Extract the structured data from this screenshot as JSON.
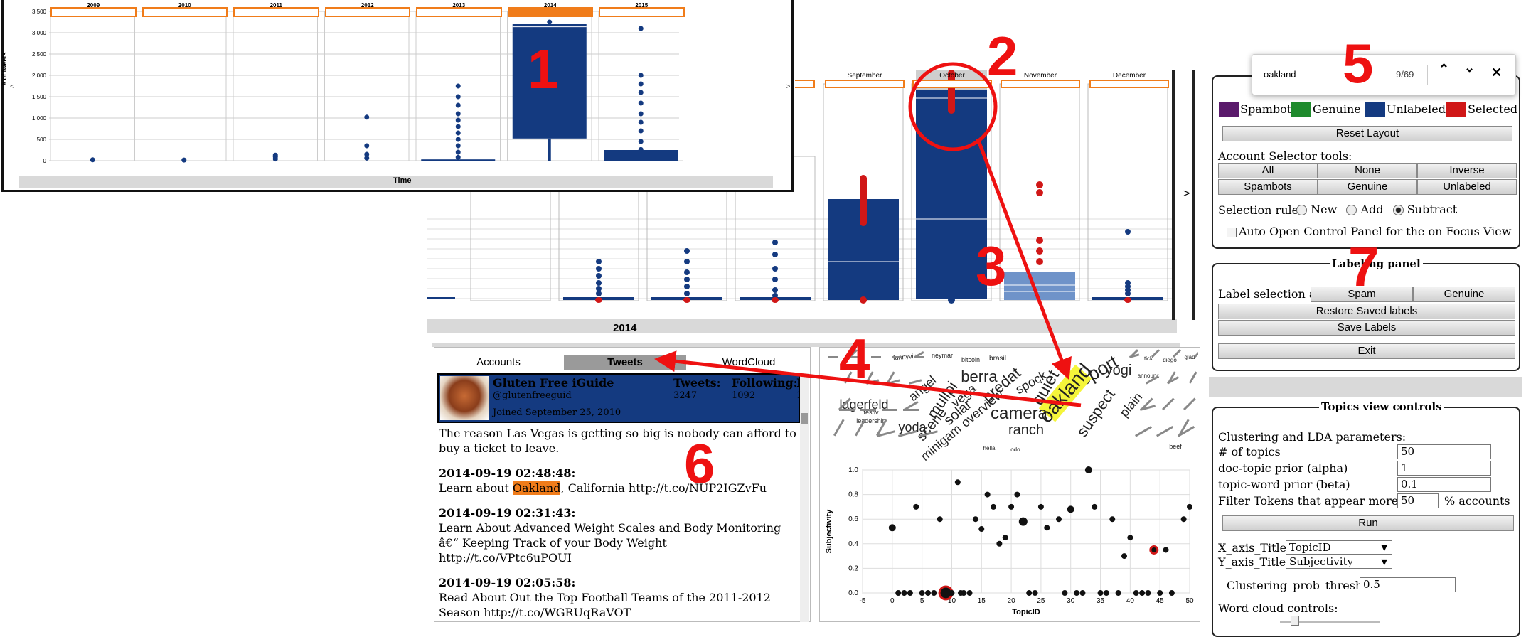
{
  "years_panel": {
    "years": [
      "2009",
      "2010",
      "2011",
      "2012",
      "2013",
      "2014",
      "2015"
    ],
    "y_ticks": [
      "3,500",
      "3,000",
      "2,500",
      "2,000",
      "1,500",
      "1,000",
      "500",
      "0"
    ],
    "y_label": "# of tweets",
    "x_label": "Time",
    "nav_left": "<",
    "nav_right": ">",
    "selected_year": "2014"
  },
  "months_panel": {
    "months": [
      "September",
      "October",
      "November",
      "December"
    ],
    "year_label": "2014",
    "nav_right": ">"
  },
  "callouts": [
    "1",
    "2",
    "3",
    "4",
    "5",
    "6",
    "7"
  ],
  "find_bar": {
    "query": "oakland",
    "count": "9/69",
    "up": "⌃",
    "down": "⌄",
    "close": "✕"
  },
  "legend": {
    "items": [
      {
        "label": "Spambot",
        "color": "#5a1a6b"
      },
      {
        "label": "Genuine",
        "color": "#1e8a2c"
      },
      {
        "label": "Unlabeled",
        "color": "#143a80"
      },
      {
        "label": "Selected",
        "color": "#d01717"
      }
    ]
  },
  "control_panel": {
    "reset_layout": "Reset Layout",
    "selector_title": "Account Selector tools:",
    "selector_buttons": [
      "All",
      "None",
      "Inverse",
      "Spambots",
      "Genuine",
      "Unlabeled"
    ],
    "selection_rule_label": "Selection rule:",
    "rule_options": [
      "New",
      "Add",
      "Subtract"
    ],
    "rule_selected": "Subtract",
    "auto_open_label": "Auto Open Control Panel for the on Focus View"
  },
  "labeling_panel": {
    "title": "Labeling panel",
    "label_as": "Label selection as:",
    "spam": "Spam",
    "genuine": "Genuine",
    "restore": "Restore Saved labels",
    "save": "Save Labels",
    "exit": "Exit"
  },
  "topics_panel": {
    "title": "Topics view controls",
    "section": "Clustering and LDA parameters:",
    "params": [
      {
        "label": "# of topics",
        "value": "50"
      },
      {
        "label": "doc-topic prior (alpha)",
        "value": "1"
      },
      {
        "label": "topic-word prior (beta)",
        "value": "0.1"
      }
    ],
    "filter_label": "Filter Tokens that appear more than",
    "filter_value": "50",
    "filter_unit": "% accounts",
    "run": "Run",
    "x_axis_label": "X_axis_Title",
    "x_axis_value": "TopicID",
    "y_axis_label": "Y_axis_Title",
    "y_axis_value": "Subjectivity",
    "threshold_label": "Clustering_prob_threshold",
    "threshold_value": "0.5",
    "wordcloud_controls": "Word cloud controls:"
  },
  "tabs": [
    "Accounts",
    "Tweets",
    "WordCloud"
  ],
  "active_tab": "Tweets",
  "account": {
    "name": "Gluten Free iGuide",
    "handle": "@glutenfreeguid",
    "joined": "Joined September 25, 2010",
    "tweets_label": "Tweets:",
    "tweets_value": "3247",
    "following_label": "Following:",
    "following_value": "1092",
    "extra_label": "F",
    "extra_value": "1"
  },
  "tweets": [
    {
      "date": "",
      "text": "The reason Las Vegas is getting so big is nobody can afford to buy a ticket to leave."
    },
    {
      "date": "2014-09-19 02:48:48:",
      "pre": "Learn about ",
      "highlight": "Oakland",
      "post": ", California http://t.co/NUP2IGZvFu"
    },
    {
      "date": "2014-09-19 02:31:43:",
      "text": "Learn About Advanced Weight Scales and Body Monitoring â€“ Keeping Track of your Body Weight http://t.co/VPtc6uPOUI"
    },
    {
      "date": "2014-09-19 02:05:58:",
      "text": "Read About Out the Top Football Teams of the 2011-2012 Season http://t.co/WGRUqRaVOT"
    }
  ],
  "wordcloud": {
    "words": [
      "funnyvin",
      "neymar",
      "brasil",
      "bitcoin",
      "report",
      "yogi",
      "oakland",
      "quiet",
      "suspect",
      "camera",
      "ranch",
      "berra",
      "predat",
      "spock",
      "mullpi",
      "scene",
      "solar",
      "overview",
      "minigam",
      "yoda",
      "lagerfeld",
      "angel",
      "vega",
      "plain",
      "tick",
      "diego",
      "glad",
      "announc",
      "beef",
      "leadership",
      "festiv",
      "hella",
      "lodo"
    ],
    "highlight": "oakland"
  },
  "scatter": {
    "chart_data": {
      "type": "scatter",
      "xlabel": "TopicID",
      "ylabel": "Subjectivity",
      "xlim": [
        -5,
        50
      ],
      "ylim": [
        0,
        1.0
      ],
      "x_ticks": [
        "-5",
        "0",
        "5",
        "10",
        "15",
        "20",
        "25",
        "30",
        "35",
        "40",
        "45",
        "50"
      ],
      "y_ticks": [
        "0.0",
        "0.2",
        "0.4",
        "0.6",
        "0.8",
        "1.0"
      ],
      "points": [
        {
          "x": 0,
          "y": 0.53,
          "s": 5
        },
        {
          "x": 1,
          "y": 0,
          "s": 4
        },
        {
          "x": 2,
          "y": 0,
          "s": 4
        },
        {
          "x": 3,
          "y": 0,
          "s": 4
        },
        {
          "x": 4,
          "y": 0.7,
          "s": 4
        },
        {
          "x": 5,
          "y": 0,
          "s": 4
        },
        {
          "x": 6,
          "y": 0,
          "s": 4
        },
        {
          "x": 7,
          "y": 0,
          "s": 4
        },
        {
          "x": 8,
          "y": 0.6,
          "s": 4
        },
        {
          "x": 8.5,
          "y": 0,
          "s": 4
        },
        {
          "x": 9,
          "y": 0,
          "s": 9,
          "sel": true
        },
        {
          "x": 10,
          "y": 0,
          "s": 4
        },
        {
          "x": 11,
          "y": 0.9,
          "s": 4
        },
        {
          "x": 11.5,
          "y": 0,
          "s": 4
        },
        {
          "x": 12,
          "y": 0,
          "s": 4
        },
        {
          "x": 13,
          "y": 0,
          "s": 4
        },
        {
          "x": 14,
          "y": 0.6,
          "s": 4
        },
        {
          "x": 15,
          "y": 0.52,
          "s": 4
        },
        {
          "x": 16,
          "y": 0.8,
          "s": 4
        },
        {
          "x": 17,
          "y": 0.7,
          "s": 4
        },
        {
          "x": 18,
          "y": 0.4,
          "s": 4
        },
        {
          "x": 19,
          "y": 0.45,
          "s": 4
        },
        {
          "x": 20,
          "y": 0.7,
          "s": 4
        },
        {
          "x": 21,
          "y": 0.8,
          "s": 4
        },
        {
          "x": 22,
          "y": 0.58,
          "s": 6
        },
        {
          "x": 23,
          "y": 0,
          "s": 4
        },
        {
          "x": 24,
          "y": 0,
          "s": 4
        },
        {
          "x": 25,
          "y": 0.7,
          "s": 4
        },
        {
          "x": 26,
          "y": 0.53,
          "s": 4
        },
        {
          "x": 28,
          "y": 0.6,
          "s": 4
        },
        {
          "x": 29,
          "y": 0,
          "s": 4
        },
        {
          "x": 30,
          "y": 0.68,
          "s": 5
        },
        {
          "x": 31,
          "y": 0,
          "s": 4
        },
        {
          "x": 32,
          "y": 0,
          "s": 4
        },
        {
          "x": 33,
          "y": 1.0,
          "s": 5
        },
        {
          "x": 34,
          "y": 0.7,
          "s": 4
        },
        {
          "x": 35,
          "y": 0,
          "s": 4
        },
        {
          "x": 36,
          "y": 0,
          "s": 4
        },
        {
          "x": 37,
          "y": 0.6,
          "s": 4
        },
        {
          "x": 38,
          "y": 0,
          "s": 4
        },
        {
          "x": 39,
          "y": 0.3,
          "s": 4
        },
        {
          "x": 40,
          "y": 0.45,
          "s": 4
        },
        {
          "x": 41,
          "y": 0,
          "s": 4
        },
        {
          "x": 42,
          "y": 0,
          "s": 4
        },
        {
          "x": 43,
          "y": 0,
          "s": 4
        },
        {
          "x": 44,
          "y": 0.35,
          "s": 5,
          "sel": true
        },
        {
          "x": 45,
          "y": 0,
          "s": 4
        },
        {
          "x": 46,
          "y": 0.35,
          "s": 4
        },
        {
          "x": 47,
          "y": 0,
          "s": 4
        },
        {
          "x": 49,
          "y": 0.6,
          "s": 4
        },
        {
          "x": 50,
          "y": 0.7,
          "s": 4
        }
      ]
    }
  }
}
